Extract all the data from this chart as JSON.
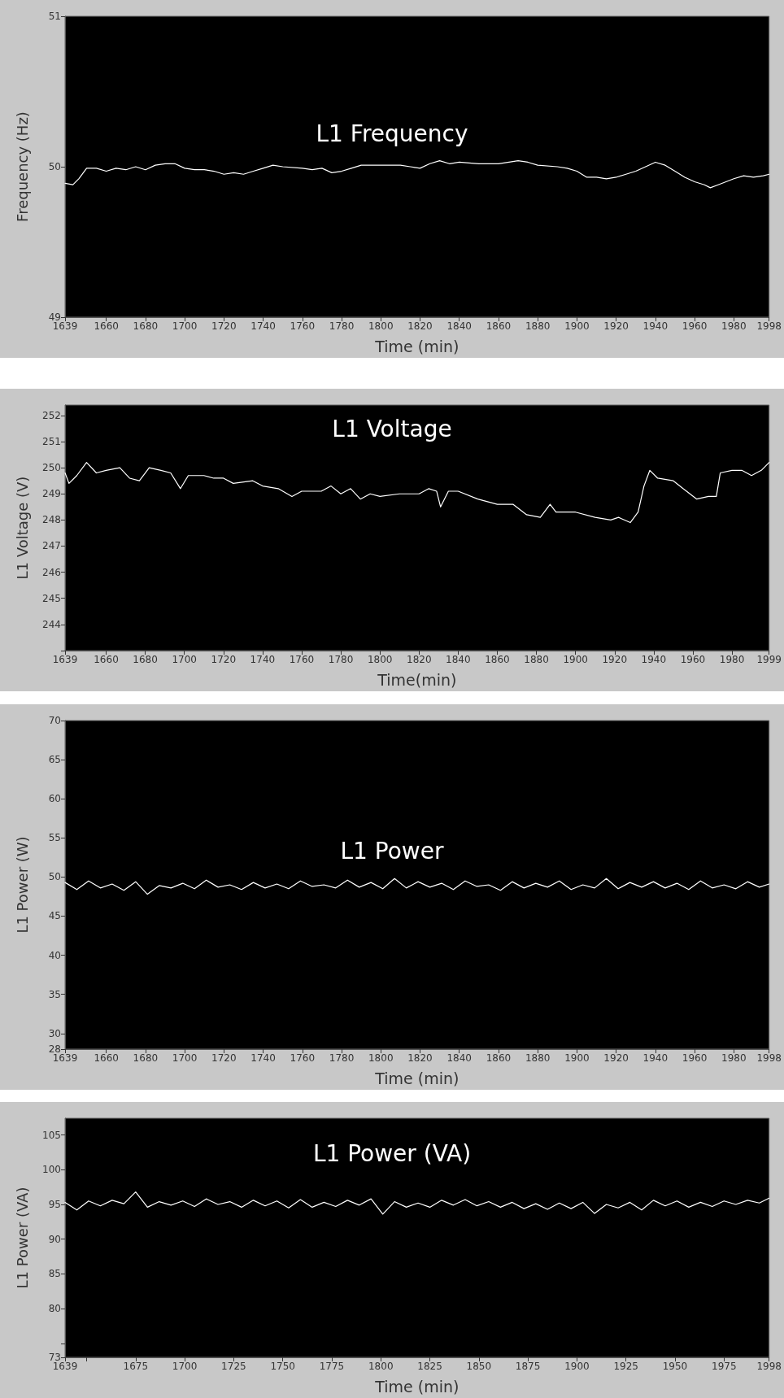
{
  "chart_data": [
    {
      "type": "line",
      "title": "L1 Frequency",
      "xlabel": "Time (min)",
      "ylabel": "Frequency (Hz)",
      "xlim": [
        1639,
        1998
      ],
      "xticks": [
        1639,
        1660,
        1680,
        1700,
        1720,
        1740,
        1760,
        1780,
        1800,
        1820,
        1840,
        1860,
        1880,
        1900,
        1920,
        1940,
        1960,
        1980,
        1998
      ],
      "ylim": [
        49,
        51
      ],
      "yticks": [
        49,
        50,
        51
      ],
      "grid": false,
      "marker": "none",
      "line_style": "solid",
      "x": [
        1639,
        1643,
        1646,
        1650,
        1655,
        1660,
        1665,
        1670,
        1675,
        1680,
        1685,
        1690,
        1695,
        1700,
        1705,
        1710,
        1715,
        1720,
        1725,
        1730,
        1735,
        1740,
        1745,
        1750,
        1760,
        1765,
        1770,
        1775,
        1780,
        1785,
        1790,
        1800,
        1810,
        1815,
        1820,
        1825,
        1830,
        1835,
        1840,
        1850,
        1860,
        1870,
        1875,
        1880,
        1890,
        1895,
        1900,
        1905,
        1910,
        1915,
        1920,
        1925,
        1930,
        1935,
        1940,
        1945,
        1950,
        1955,
        1960,
        1965,
        1968,
        1972,
        1976,
        1980,
        1985,
        1990,
        1995,
        1998
      ],
      "series": [
        {
          "color": "#ffffff",
          "values": [
            49.89,
            49.88,
            49.92,
            49.99,
            49.99,
            49.97,
            49.99,
            49.98,
            50.0,
            49.98,
            50.01,
            50.02,
            50.02,
            49.99,
            49.98,
            49.98,
            49.97,
            49.95,
            49.96,
            49.95,
            49.97,
            49.99,
            50.01,
            50.0,
            49.99,
            49.98,
            49.99,
            49.96,
            49.97,
            49.99,
            50.01,
            50.01,
            50.01,
            50.0,
            49.99,
            50.02,
            50.04,
            50.02,
            50.03,
            50.02,
            50.02,
            50.04,
            50.03,
            50.01,
            50.0,
            49.99,
            49.97,
            49.93,
            49.93,
            49.92,
            49.93,
            49.95,
            49.97,
            50.0,
            50.03,
            50.01,
            49.97,
            49.93,
            49.9,
            49.88,
            49.86,
            49.88,
            49.9,
            49.92,
            49.94,
            49.93,
            49.94,
            49.95
          ]
        }
      ]
    },
    {
      "type": "line",
      "title": "L1 Voltage",
      "xlabel": "Time(min)",
      "ylabel": "L1 Voltage (V)",
      "xlim": [
        1639,
        1999
      ],
      "xticks": [
        1639,
        1660,
        1680,
        1700,
        1720,
        1740,
        1760,
        1780,
        1800,
        1820,
        1840,
        1860,
        1880,
        1900,
        1920,
        1940,
        1960,
        1980,
        1999
      ],
      "ylim": [
        243,
        252.4
      ],
      "yticks": [
        {
          "value": 243,
          "label": null
        },
        244,
        245,
        246,
        247,
        248,
        249,
        250,
        251,
        252
      ],
      "grid": false,
      "marker": "none",
      "line_style": "solid",
      "x": [
        1639,
        1641,
        1645,
        1650,
        1655,
        1660,
        1667,
        1672,
        1677,
        1680,
        1682,
        1688,
        1693,
        1698,
        1702,
        1710,
        1715,
        1720,
        1725,
        1735,
        1740,
        1748,
        1755,
        1760,
        1770,
        1775,
        1780,
        1785,
        1790,
        1795,
        1800,
        1810,
        1820,
        1825,
        1829,
        1831,
        1835,
        1840,
        1850,
        1860,
        1868,
        1875,
        1882,
        1887,
        1890,
        1900,
        1910,
        1918,
        1922,
        1928,
        1932,
        1935,
        1938,
        1942,
        1950,
        1955,
        1962,
        1968,
        1972,
        1974,
        1980,
        1985,
        1990,
        1995,
        1999
      ],
      "series": [
        {
          "color": "#ffffff",
          "values": [
            249.8,
            249.4,
            249.7,
            250.2,
            249.8,
            249.9,
            250.0,
            249.6,
            249.5,
            249.8,
            250.0,
            249.9,
            249.8,
            249.2,
            249.7,
            249.7,
            249.6,
            249.6,
            249.4,
            249.5,
            249.3,
            249.2,
            248.9,
            249.1,
            249.1,
            249.3,
            249.0,
            249.2,
            248.8,
            249.0,
            248.9,
            249.0,
            249.0,
            249.2,
            249.1,
            248.5,
            249.1,
            249.1,
            248.8,
            248.6,
            248.6,
            248.2,
            248.1,
            248.6,
            248.3,
            248.3,
            248.1,
            248.0,
            248.1,
            247.9,
            248.3,
            249.3,
            249.9,
            249.6,
            249.5,
            249.2,
            248.8,
            248.9,
            248.9,
            249.8,
            249.9,
            249.9,
            249.7,
            249.9,
            250.2
          ]
        }
      ]
    },
    {
      "type": "line",
      "title": "L1 Power",
      "xlabel": "Time (min)",
      "ylabel": "L1 Power (W)",
      "xlim": [
        1639,
        1998
      ],
      "xticks": [
        1639,
        1660,
        1680,
        1700,
        1720,
        1740,
        1760,
        1780,
        1800,
        1820,
        1840,
        1860,
        1880,
        1900,
        1920,
        1940,
        1960,
        1980,
        1998
      ],
      "ylim": [
        28,
        70
      ],
      "yticks": [
        28,
        30,
        35,
        40,
        45,
        50,
        55,
        60,
        65,
        70
      ],
      "grid": false,
      "marker": "none",
      "line_style": "solid",
      "x": [
        1639,
        1645,
        1651,
        1657,
        1663,
        1669,
        1675,
        1681,
        1687,
        1693,
        1699,
        1705,
        1711,
        1717,
        1723,
        1729,
        1735,
        1741,
        1747,
        1753,
        1759,
        1765,
        1771,
        1777,
        1783,
        1789,
        1795,
        1801,
        1807,
        1813,
        1819,
        1825,
        1831,
        1837,
        1843,
        1849,
        1855,
        1861,
        1867,
        1873,
        1879,
        1885,
        1891,
        1897,
        1903,
        1909,
        1915,
        1921,
        1927,
        1933,
        1939,
        1945,
        1951,
        1957,
        1963,
        1969,
        1975,
        1981,
        1987,
        1993,
        1998
      ],
      "series": [
        {
          "color": "#ffffff",
          "values": [
            49.3,
            48.4,
            49.5,
            48.6,
            49.1,
            48.3,
            49.4,
            47.8,
            48.9,
            48.6,
            49.2,
            48.5,
            49.6,
            48.7,
            49.0,
            48.4,
            49.3,
            48.6,
            49.1,
            48.5,
            49.5,
            48.8,
            49.0,
            48.6,
            49.6,
            48.7,
            49.3,
            48.5,
            49.8,
            48.6,
            49.4,
            48.7,
            49.2,
            48.4,
            49.5,
            48.8,
            49.0,
            48.3,
            49.4,
            48.6,
            49.2,
            48.7,
            49.5,
            48.4,
            49.0,
            48.6,
            49.8,
            48.5,
            49.3,
            48.7,
            49.4,
            48.6,
            49.2,
            48.4,
            49.5,
            48.6,
            49.0,
            48.5,
            49.4,
            48.7,
            49.1
          ]
        }
      ]
    },
    {
      "type": "line",
      "title": "L1 Power (VA)",
      "xlabel": "Time (min)",
      "ylabel": "L1 Power (VA)",
      "xlim": [
        1639,
        1998
      ],
      "xticks": [
        1639,
        {
          "value": 1650,
          "label": null
        },
        1675,
        1700,
        1725,
        1750,
        1775,
        1800,
        1825,
        1850,
        1875,
        1900,
        1925,
        1950,
        1975,
        1998
      ],
      "ylim": [
        73,
        107.4
      ],
      "yticks": [
        73,
        {
          "value": 75,
          "label": null
        },
        80,
        85,
        90,
        95,
        100,
        105
      ],
      "grid": false,
      "marker": "none",
      "line_style": "solid",
      "x": [
        1639,
        1645,
        1651,
        1657,
        1663,
        1669,
        1675,
        1681,
        1687,
        1693,
        1699,
        1705,
        1711,
        1717,
        1723,
        1729,
        1735,
        1741,
        1747,
        1753,
        1759,
        1765,
        1771,
        1777,
        1783,
        1789,
        1795,
        1801,
        1807,
        1813,
        1819,
        1825,
        1831,
        1837,
        1843,
        1849,
        1855,
        1861,
        1867,
        1873,
        1879,
        1885,
        1891,
        1897,
        1903,
        1909,
        1915,
        1921,
        1927,
        1933,
        1939,
        1945,
        1951,
        1957,
        1963,
        1969,
        1975,
        1981,
        1987,
        1993,
        1998
      ],
      "series": [
        {
          "color": "#ffffff",
          "values": [
            95.3,
            94.2,
            95.5,
            94.8,
            95.6,
            95.1,
            96.8,
            94.6,
            95.4,
            94.9,
            95.5,
            94.7,
            95.8,
            95.0,
            95.4,
            94.6,
            95.6,
            94.8,
            95.5,
            94.5,
            95.7,
            94.6,
            95.3,
            94.7,
            95.6,
            94.9,
            95.8,
            93.6,
            95.4,
            94.6,
            95.2,
            94.6,
            95.6,
            94.9,
            95.7,
            94.8,
            95.4,
            94.6,
            95.3,
            94.4,
            95.1,
            94.3,
            95.2,
            94.4,
            95.3,
            93.7,
            95.0,
            94.5,
            95.3,
            94.2,
            95.6,
            94.8,
            95.5,
            94.6,
            95.3,
            94.7,
            95.5,
            95.0,
            95.6,
            95.2,
            95.9
          ]
        }
      ]
    }
  ]
}
